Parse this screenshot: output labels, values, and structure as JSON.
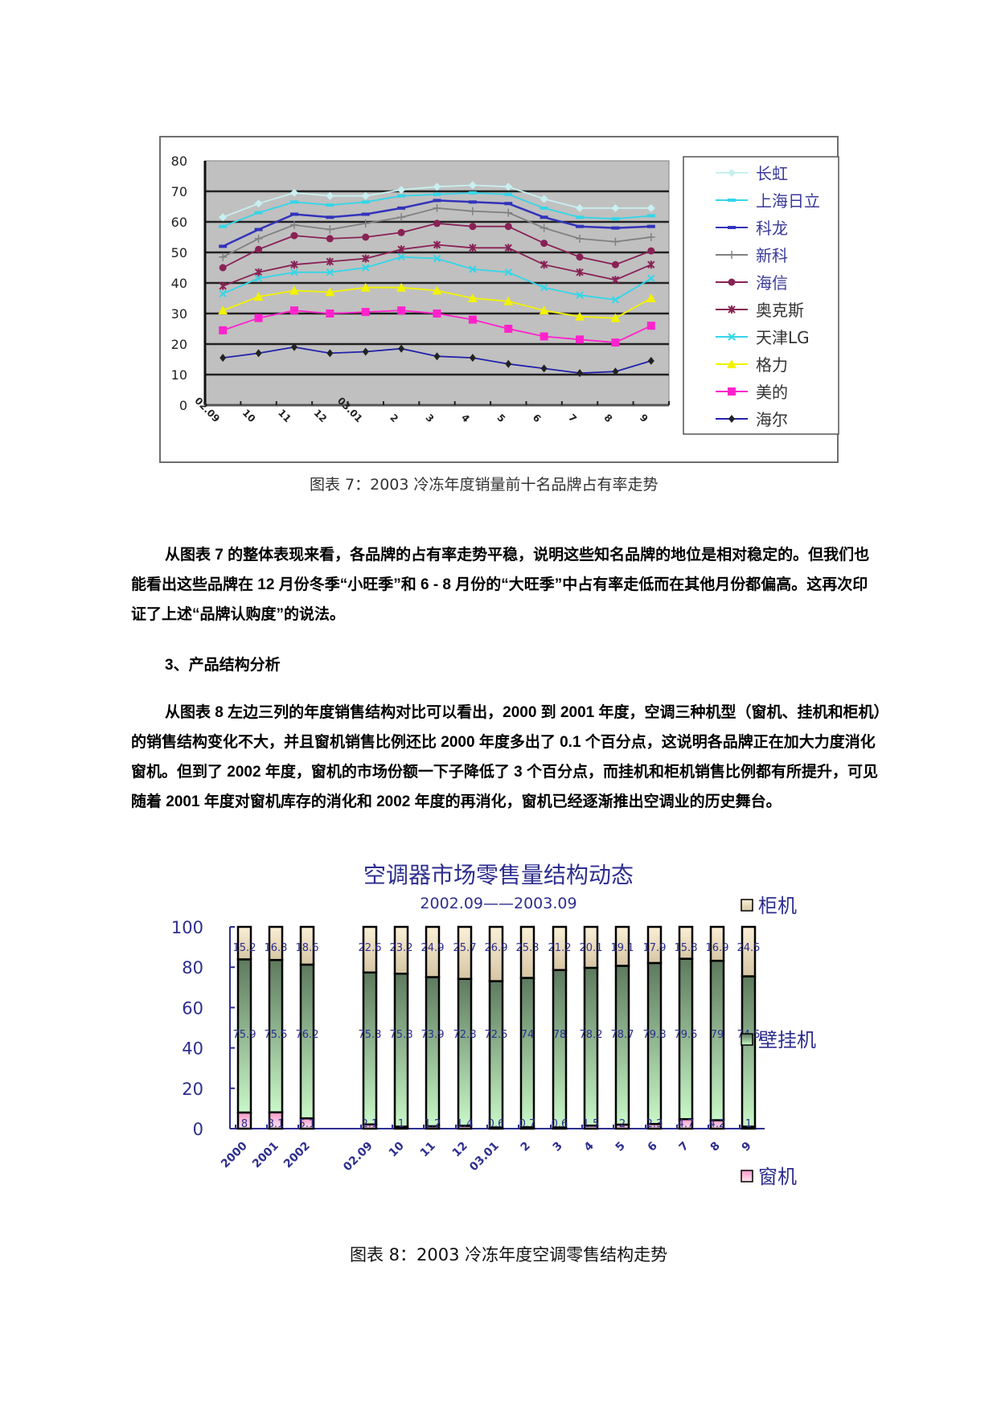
{
  "figure7": {
    "caption": "图表 7：2003 冷冻年度销量前十名品牌占有率走势"
  },
  "paragraph1": "从图表 7 的整体表现来看，各品牌的占有率走势平稳，说明这些知名品牌的地位是相对稳定的。但我们也能看出这些品牌在 12 月份冬季“小旺季”和 6 - 8 月份的“大旺季”中占有率走低而在其他月份都偏高。这再次印证了上述“品牌认购度”的说法。",
  "section_heading": "3、产品结构分析",
  "paragraph2": "从图表 8 左边三列的年度销售结构对比可以看出，2000 到 2001 年度，空调三种机型（窗机、挂机和柜机）的销售结构变化不大，并且窗机销售比例还比 2000 年度多出了 0.1 个百分点，这说明各品牌正在加大力度消化窗机。但到了 2002 年度，窗机的市场份额一下子降低了 3 个百分点，而挂机和柜机销售比例都有所提升，可见随着 2001 年度对窗机库存的消化和 2002 年度的再消化，窗机已经逐渐推出空调业的历史舞台。",
  "figure8": {
    "caption": "图表 8：2003 冷冻年度空调零售结构走势"
  },
  "chart_data": [
    {
      "type": "line",
      "title": "",
      "caption": "图表 7：2003 冷冻年度销量前十名品牌占有率走势",
      "xlabel": "",
      "ylabel": "",
      "ylim": [
        0,
        80
      ],
      "yticks": [
        0,
        10,
        20,
        30,
        40,
        50,
        60,
        70,
        80
      ],
      "grid": true,
      "legend_position": "right",
      "x": [
        "02.09",
        "10",
        "11",
        "12",
        "03.01",
        "2",
        "3",
        "4",
        "5",
        "6",
        "7",
        "8",
        "9"
      ],
      "series": [
        {
          "name": "长虹",
          "color": "#c8f0f0",
          "marker": "diamond",
          "values": [
            61.5,
            66,
            69.5,
            68.5,
            68.5,
            70.5,
            71.5,
            72,
            71.5,
            67.5,
            64.5,
            64.5,
            64.5
          ]
        },
        {
          "name": "上海日立",
          "color": "#33d6e8",
          "marker": "dash",
          "values": [
            58.5,
            63,
            66.5,
            65.5,
            66.5,
            68.5,
            69,
            69.5,
            69,
            64.5,
            61.5,
            61,
            62
          ]
        },
        {
          "name": "科龙",
          "color": "#3333bb",
          "marker": "dash",
          "values": [
            52,
            57.5,
            62.5,
            61.5,
            62.5,
            64.5,
            67,
            66.5,
            66,
            61.5,
            58.5,
            58,
            58.5
          ]
        },
        {
          "name": "新科",
          "color": "#808080",
          "marker": "plus",
          "values": [
            48.5,
            54.5,
            59,
            57.5,
            59.5,
            61.5,
            64.5,
            63.5,
            63,
            58,
            54.5,
            53.5,
            55
          ]
        },
        {
          "name": "海信",
          "color": "#882255",
          "marker": "circle",
          "values": [
            45,
            51,
            55.5,
            54.5,
            55,
            56.5,
            59.5,
            58.5,
            58.5,
            53,
            48.5,
            46,
            50.5
          ]
        },
        {
          "name": "奥克斯",
          "color": "#882255",
          "marker": "star",
          "values": [
            39,
            43.5,
            46,
            47,
            48,
            51,
            52.5,
            51.5,
            51.5,
            46,
            43.5,
            41,
            46
          ]
        },
        {
          "name": "天津LG",
          "color": "#33d6e8",
          "marker": "x",
          "values": [
            36.5,
            41.5,
            43.5,
            43.5,
            45,
            48.5,
            48,
            44.5,
            43.5,
            38.5,
            36,
            34.5,
            41.5
          ]
        },
        {
          "name": "格力",
          "color": "#f2f200",
          "marker": "triangle",
          "values": [
            31,
            35.5,
            37.5,
            37,
            38.5,
            38.5,
            37.5,
            35,
            34,
            31,
            29,
            28.5,
            35
          ]
        },
        {
          "name": "美的",
          "color": "#ff22cc",
          "marker": "square",
          "values": [
            24.5,
            28.5,
            31,
            30,
            30.5,
            31,
            30,
            28,
            25,
            22.5,
            21.5,
            20.5,
            26
          ]
        },
        {
          "name": "海尔",
          "color": "#2222aa",
          "marker": "dot",
          "values": [
            15.5,
            17,
            19,
            17,
            17.5,
            18.5,
            16,
            15.5,
            13.5,
            12,
            10.5,
            11,
            14.5
          ]
        }
      ]
    },
    {
      "type": "bar",
      "stacked": true,
      "title": "空调器市场零售量结构动态",
      "subtitle": "2002.09——2003.09",
      "caption": "图表 8：2003 冷冻年度空调零售结构走势",
      "xlabel": "",
      "ylabel": "",
      "ylim": [
        0,
        100
      ],
      "yticks": [
        0,
        20,
        40,
        60,
        80,
        100
      ],
      "grid": false,
      "legend_position": "right",
      "categories": [
        "2000",
        "2001",
        "2002",
        "02.09",
        "10",
        "11",
        "12",
        "03.01",
        "2",
        "3",
        "4",
        "5",
        "6",
        "7",
        "8",
        "9"
      ],
      "series": [
        {
          "name": "窗机",
          "color": "#f7a8d0",
          "values": [
            8.0,
            8.1,
            5.1,
            2.1,
            1,
            1.2,
            1.4,
            0.6,
            0.7,
            0.6,
            1.5,
            2,
            2.3,
            4.7,
            4.2,
            1
          ]
        },
        {
          "name": "壁挂机",
          "color": "#8fb890",
          "values": [
            75.9,
            75.5,
            76.2,
            75.3,
            75.8,
            73.9,
            72.8,
            72.5,
            74,
            78,
            78.2,
            78.7,
            79.8,
            79.5,
            79,
            74.5
          ]
        },
        {
          "name": "柜机",
          "color": "#f5e8c8",
          "values": [
            15.2,
            16.3,
            18.6,
            22.6,
            23.2,
            24.9,
            25.7,
            26.9,
            25.3,
            21.2,
            20.1,
            19.1,
            17.9,
            15.8,
            16.9,
            24.5
          ]
        }
      ]
    }
  ]
}
